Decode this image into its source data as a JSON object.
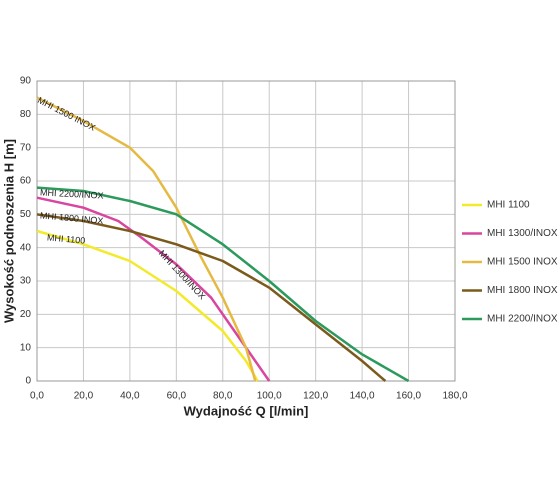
{
  "chart_data": {
    "type": "line",
    "x_label": "Wydajność Q [l/min]",
    "y_label": "Wysokość podnoszenia H [m]",
    "xlim": [
      0,
      180
    ],
    "ylim": [
      0,
      90
    ],
    "xticks": [
      {
        "value": 0,
        "label": "0,0"
      },
      {
        "value": 20,
        "label": "20,0"
      },
      {
        "value": 40,
        "label": "40,0"
      },
      {
        "value": 60,
        "label": "60,0"
      },
      {
        "value": 80,
        "label": "80,0"
      },
      {
        "value": 100,
        "label": "100,0"
      },
      {
        "value": 120,
        "label": "120,0"
      },
      {
        "value": 140,
        "label": "140,0"
      },
      {
        "value": 160,
        "label": "160,0"
      },
      {
        "value": 180,
        "label": "180,0"
      }
    ],
    "yticks": [
      0,
      10,
      20,
      30,
      40,
      50,
      60,
      70,
      80,
      90
    ],
    "grid": true,
    "legend": "right",
    "series": [
      {
        "name": "MHI 1100",
        "color": "#f2ea2a",
        "x": [
          0,
          20,
          40,
          60,
          80,
          90,
          95
        ],
        "values": [
          45,
          41,
          36,
          27,
          15,
          6,
          0
        ]
      },
      {
        "name": "MHI 1300/INOX",
        "color": "#d9459f",
        "x": [
          0,
          20,
          35,
          45,
          60,
          75,
          85,
          95,
          100
        ],
        "values": [
          55,
          52,
          48,
          43,
          35,
          25,
          15,
          5,
          0
        ]
      },
      {
        "name": "MHI 1500 INOX",
        "color": "#e6b943",
        "x": [
          0,
          20,
          40,
          50,
          60,
          70,
          80,
          90,
          94
        ],
        "values": [
          85,
          78,
          70,
          63,
          52,
          38,
          25,
          10,
          0
        ]
      },
      {
        "name": "MHI 1800 INOX",
        "color": "#7b5b1c",
        "x": [
          0,
          20,
          40,
          60,
          80,
          100,
          120,
          140,
          150
        ],
        "values": [
          50,
          48,
          45,
          41,
          36,
          28,
          17,
          6,
          0
        ]
      },
      {
        "name": "MHI 2200/INOX",
        "color": "#2b9a5c",
        "x": [
          0,
          20,
          40,
          60,
          80,
          100,
          120,
          140,
          160
        ],
        "values": [
          58,
          57,
          54,
          50,
          41,
          30,
          18,
          8,
          0
        ]
      }
    ]
  }
}
